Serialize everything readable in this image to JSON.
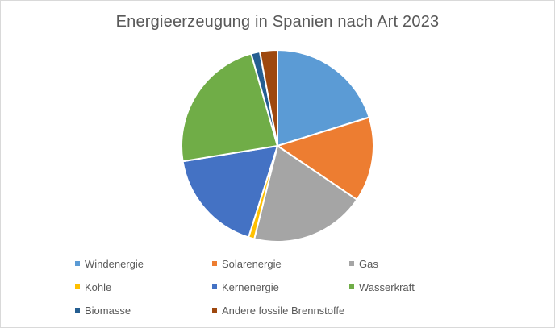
{
  "chart_data": {
    "type": "pie",
    "title": "Energieerzeugung in Spanien nach Art 2023",
    "legend_position": "bottom",
    "slices": [
      {
        "label": "Windenergie",
        "value": 20.5,
        "color": "#5b9bd5"
      },
      {
        "label": "Solarenergie",
        "value": 14.5,
        "color": "#ed7d31"
      },
      {
        "label": "Gas",
        "value": 19.7,
        "color": "#a5a5a5"
      },
      {
        "label": "Kohle",
        "value": 1.0,
        "color": "#ffc000"
      },
      {
        "label": "Kernenergie",
        "value": 17.8,
        "color": "#4472c4"
      },
      {
        "label": "Wasserkraft",
        "value": 23.5,
        "color": "#70ad47"
      },
      {
        "label": "Biomasse",
        "value": 1.5,
        "color": "#255e91"
      },
      {
        "label": "Andere fossile Brennstoffe",
        "value": 3.0,
        "color": "#9e480e"
      }
    ]
  }
}
